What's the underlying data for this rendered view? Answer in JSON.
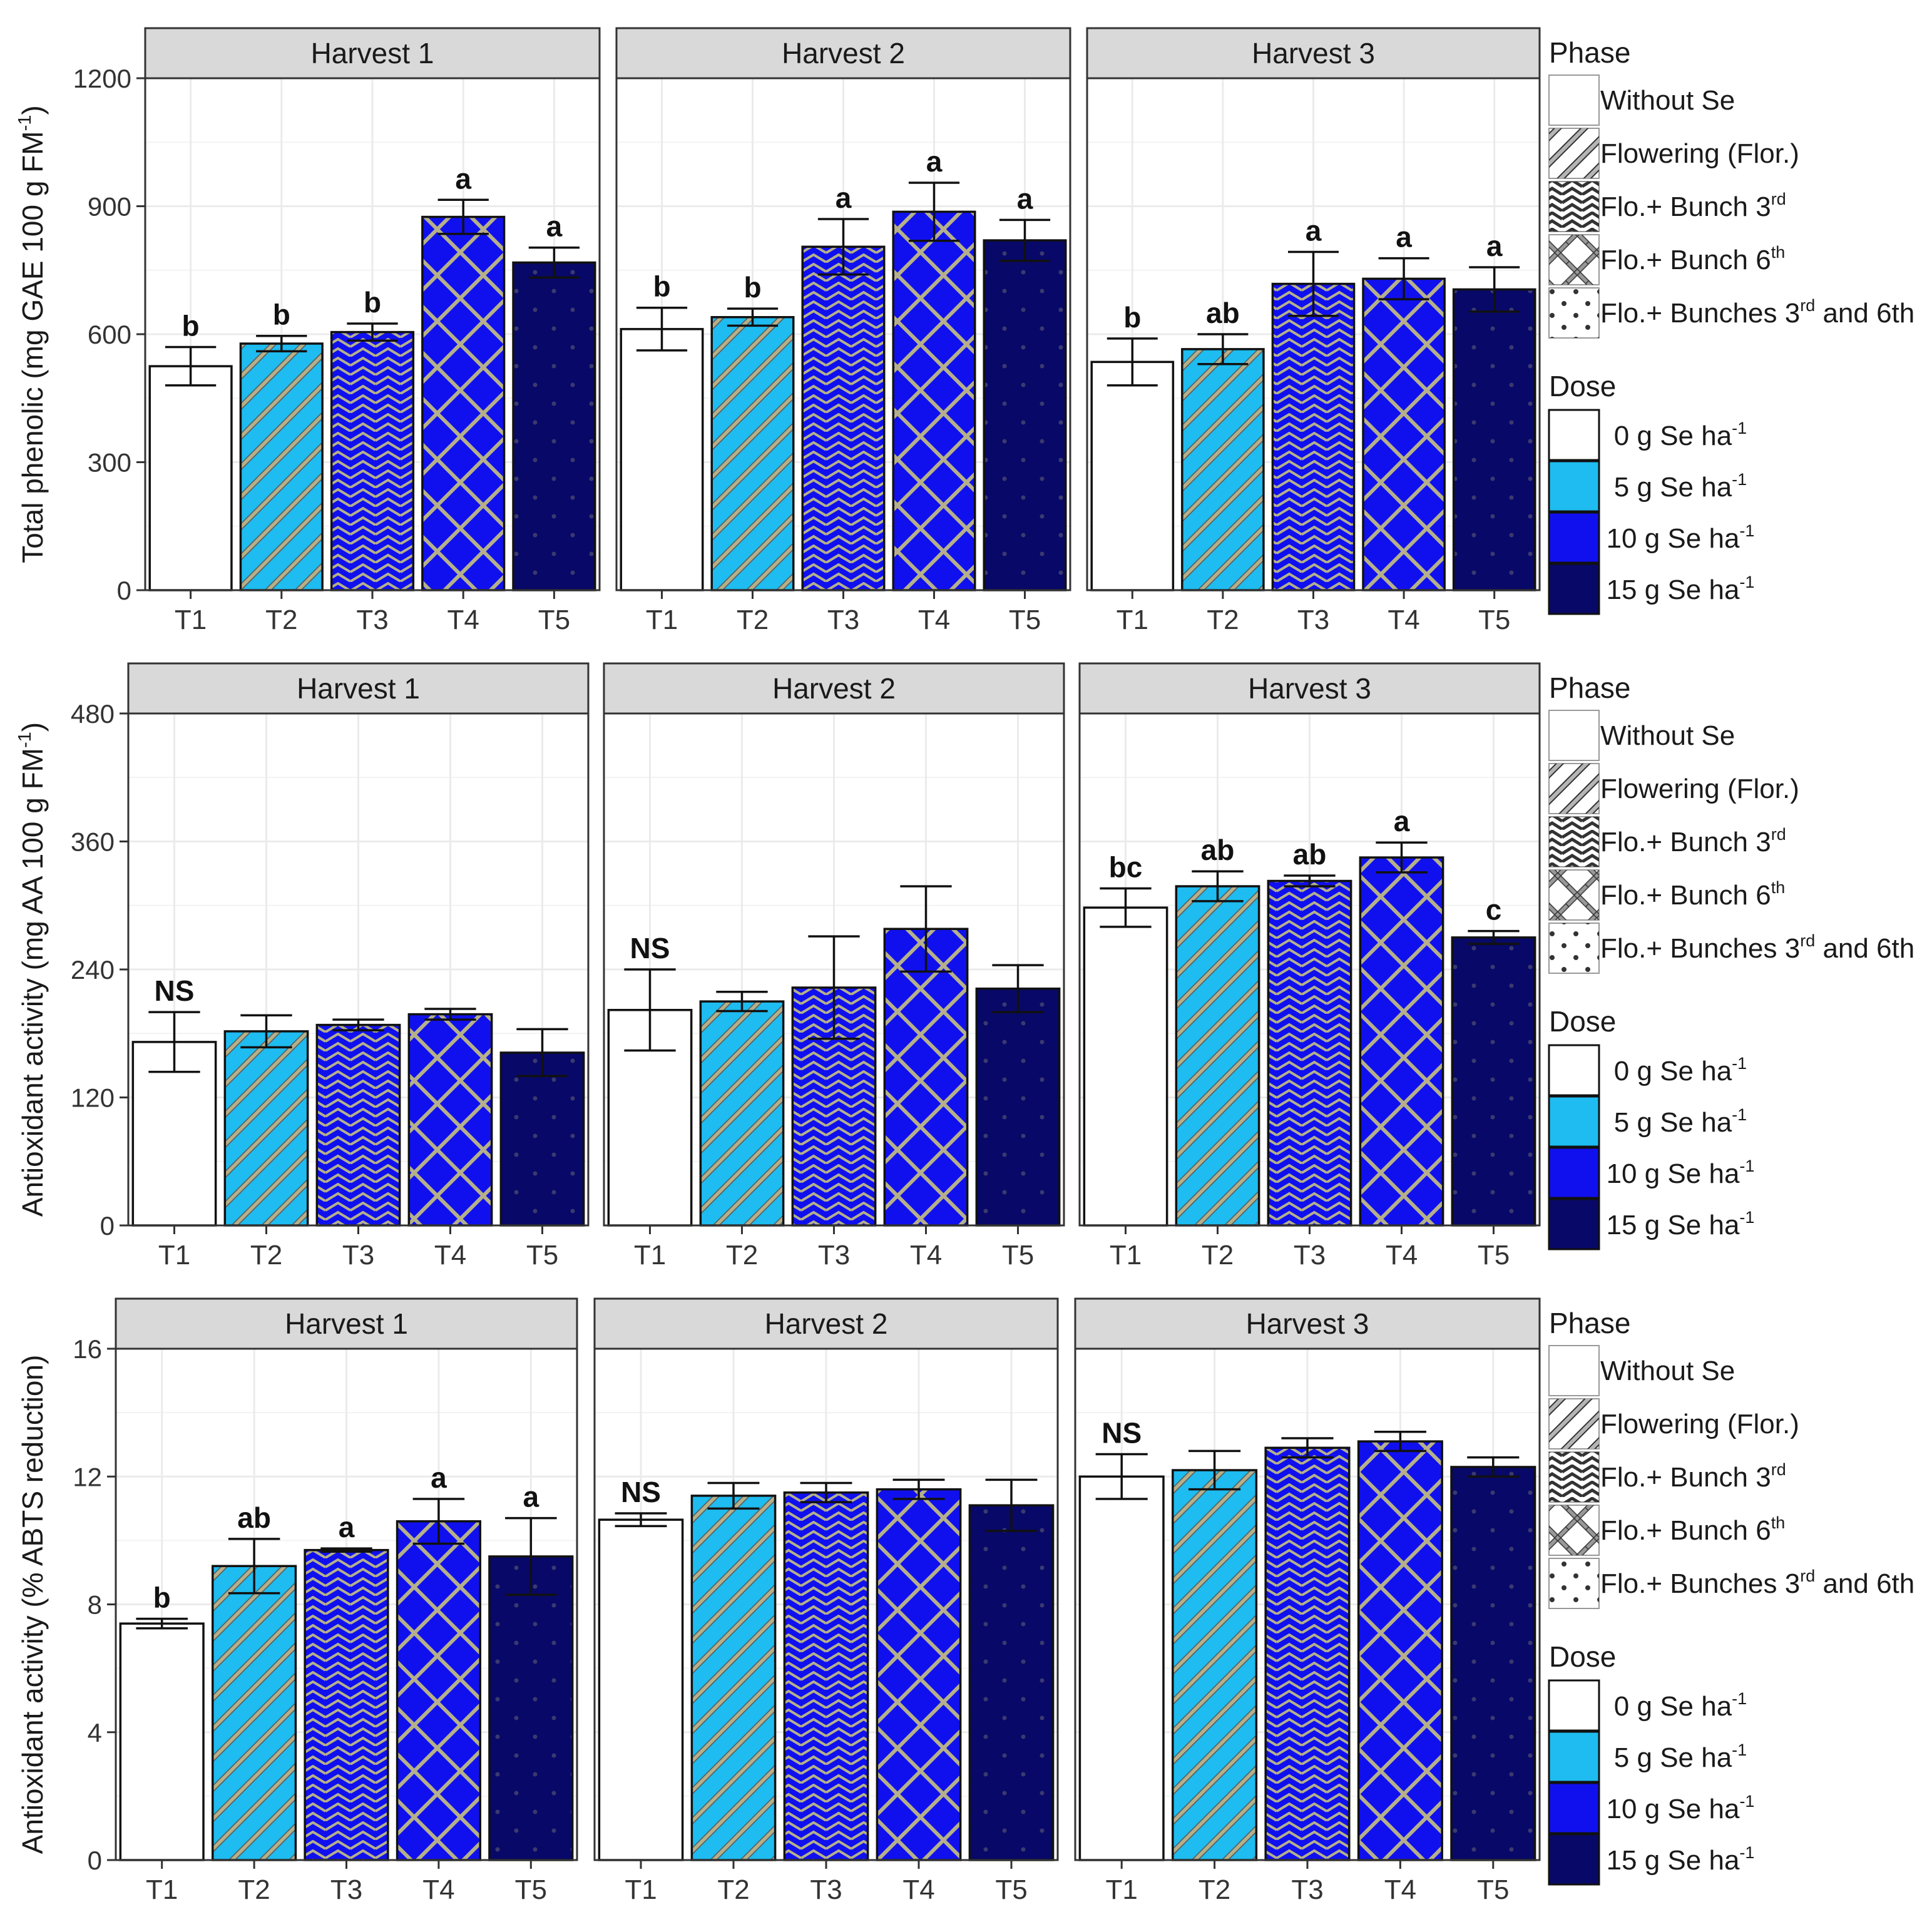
{
  "categories": [
    "T1",
    "T2",
    "T3",
    "T4",
    "T5"
  ],
  "colors": {
    "dose0": "#ffffff",
    "dose5": "#1ebcf0",
    "dose10": "#1010ee",
    "dose15": "#080868",
    "hatch": "#b5b08a",
    "strip": "#d9d9d9",
    "grid": "#ebebeb",
    "panel_border": "#333333"
  },
  "legend": {
    "phase_title": "Phase",
    "phase_items": [
      {
        "icon": "blank-swatch-icon",
        "pre": "Without Se",
        "sup": "",
        "post": ""
      },
      {
        "icon": "diagonal-stripe-swatch-icon",
        "pre": "Flowering (Flor.)",
        "sup": "",
        "post": ""
      },
      {
        "icon": "zigzag-swatch-icon",
        "pre": "Flo.+ Bunch 3",
        "sup": "rd",
        "post": ""
      },
      {
        "icon": "crosshatch-swatch-icon",
        "pre": "Flo.+ Bunch 6",
        "sup": "th",
        "post": ""
      },
      {
        "icon": "dots-swatch-icon",
        "pre": "Flo.+ Bunches 3",
        "sup": "rd",
        "post": " and 6th"
      }
    ],
    "dose_title": "Dose",
    "dose_items": [
      {
        "color": "#ffffff",
        "pre": "0 g Se ha",
        "sup": "-1"
      },
      {
        "color": "#1ebcf0",
        "pre": "5 g Se ha",
        "sup": "-1"
      },
      {
        "color": "#1010ee",
        "pre": "10 g Se ha",
        "sup": "-1"
      },
      {
        "color": "#080868",
        "pre": "15 g Se ha",
        "sup": "-1"
      }
    ]
  },
  "chart_data": [
    {
      "type": "bar",
      "ylabel_pre": "Total phenolic (mg GAE 100 g FM",
      "ylabel_sup": "-1",
      "ylabel_post": ")",
      "ylim": [
        0,
        1200
      ],
      "yticks": [
        0,
        300,
        600,
        900,
        1200
      ],
      "panels": [
        {
          "title": "Harvest 1",
          "values": [
            525,
            578,
            605,
            875,
            768
          ],
          "errors": [
            45,
            18,
            20,
            40,
            35
          ],
          "labels": [
            "b",
            "b",
            "b",
            "a",
            "a"
          ]
        },
        {
          "title": "Harvest 2",
          "values": [
            612,
            640,
            805,
            887,
            820
          ],
          "errors": [
            50,
            20,
            65,
            68,
            48
          ],
          "labels": [
            "b",
            "b",
            "a",
            "a",
            "a"
          ]
        },
        {
          "title": "Harvest 3",
          "values": [
            535,
            565,
            718,
            730,
            705
          ],
          "errors": [
            55,
            35,
            75,
            48,
            52
          ],
          "labels": [
            "b",
            "ab",
            "a",
            "a",
            "a"
          ]
        }
      ]
    },
    {
      "type": "bar",
      "ylabel_pre": "Antioxidant activity (mg AA 100 g FM",
      "ylabel_sup": "-1",
      "ylabel_post": ")",
      "ylim": [
        0,
        480
      ],
      "yticks": [
        0,
        120,
        240,
        360,
        480
      ],
      "panels": [
        {
          "title": "Harvest 1",
          "values": [
            172,
            182,
            188,
            198,
            162
          ],
          "errors": [
            28,
            15,
            5,
            5,
            22
          ],
          "labels": [
            "NS",
            "",
            "",
            "",
            ""
          ]
        },
        {
          "title": "Harvest 2",
          "values": [
            202,
            210,
            223,
            278,
            222
          ],
          "errors": [
            38,
            9,
            48,
            40,
            22
          ],
          "labels": [
            "NS",
            "",
            "",
            "",
            ""
          ]
        },
        {
          "title": "Harvest 3",
          "values": [
            298,
            318,
            323,
            345,
            270
          ],
          "errors": [
            18,
            14,
            5,
            14,
            6
          ],
          "labels": [
            "bc",
            "ab",
            "ab",
            "a",
            "c"
          ]
        }
      ]
    },
    {
      "type": "bar",
      "ylabel_pre": "Antioxidant activity (% ABTS reduction)",
      "ylabel_sup": "",
      "ylabel_post": "",
      "ylim": [
        0,
        16
      ],
      "yticks": [
        0,
        4,
        8,
        12,
        16
      ],
      "panels": [
        {
          "title": "Harvest 1",
          "values": [
            7.4,
            9.2,
            9.7,
            10.6,
            9.5
          ],
          "errors": [
            0.15,
            0.85,
            0.05,
            0.7,
            1.2
          ],
          "labels": [
            "b",
            "ab",
            "a",
            "a",
            "a"
          ]
        },
        {
          "title": "Harvest 2",
          "values": [
            10.65,
            11.4,
            11.5,
            11.6,
            11.1
          ],
          "errors": [
            0.2,
            0.4,
            0.3,
            0.3,
            0.8
          ],
          "labels": [
            "NS",
            "",
            "",
            "",
            ""
          ]
        },
        {
          "title": "Harvest 3",
          "values": [
            12.0,
            12.2,
            12.9,
            13.1,
            12.3
          ],
          "errors": [
            0.7,
            0.6,
            0.3,
            0.3,
            0.3
          ],
          "labels": [
            "NS",
            "",
            "",
            "",
            ""
          ]
        }
      ]
    }
  ]
}
